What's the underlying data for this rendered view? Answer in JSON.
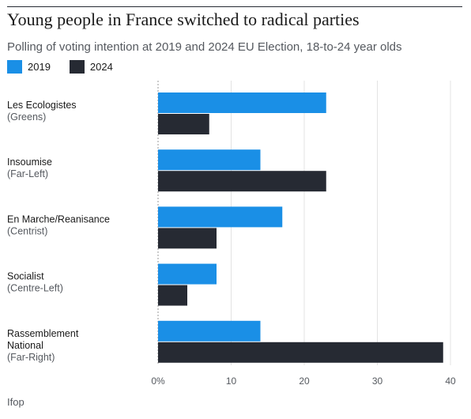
{
  "header": {
    "title": "Young people in France switched to radical parties",
    "subtitle": "Polling of voting intention at 2019 and 2024 EU Election, 18-to-24 year olds"
  },
  "legend": {
    "items": [
      {
        "label": "2019",
        "color": "#1a8fe6"
      },
      {
        "label": "2024",
        "color": "#262a33"
      }
    ]
  },
  "chart_data": {
    "type": "bar",
    "orientation": "horizontal",
    "categories": [
      {
        "name": "Les Ecologistes",
        "sub": "(Greens)"
      },
      {
        "name": "Insoumise",
        "sub": "(Far-Left)"
      },
      {
        "name": "En Marche/Reanisance",
        "sub": "(Centrist)"
      },
      {
        "name": "Socialist",
        "sub": "(Centre-Left)"
      },
      {
        "name": "Rassemblement National",
        "sub": "(Far-Right)"
      }
    ],
    "series": [
      {
        "name": "2019",
        "color": "#1a8fe6",
        "values": [
          23,
          14,
          17,
          8,
          14
        ]
      },
      {
        "name": "2024",
        "color": "#262a33",
        "values": [
          7,
          23,
          8,
          4,
          39
        ]
      }
    ],
    "xlim": [
      0,
      40
    ],
    "xticks": [
      "0%",
      "10",
      "20",
      "30",
      "40"
    ],
    "grid": true
  },
  "footer": {
    "source": "Ifop"
  }
}
